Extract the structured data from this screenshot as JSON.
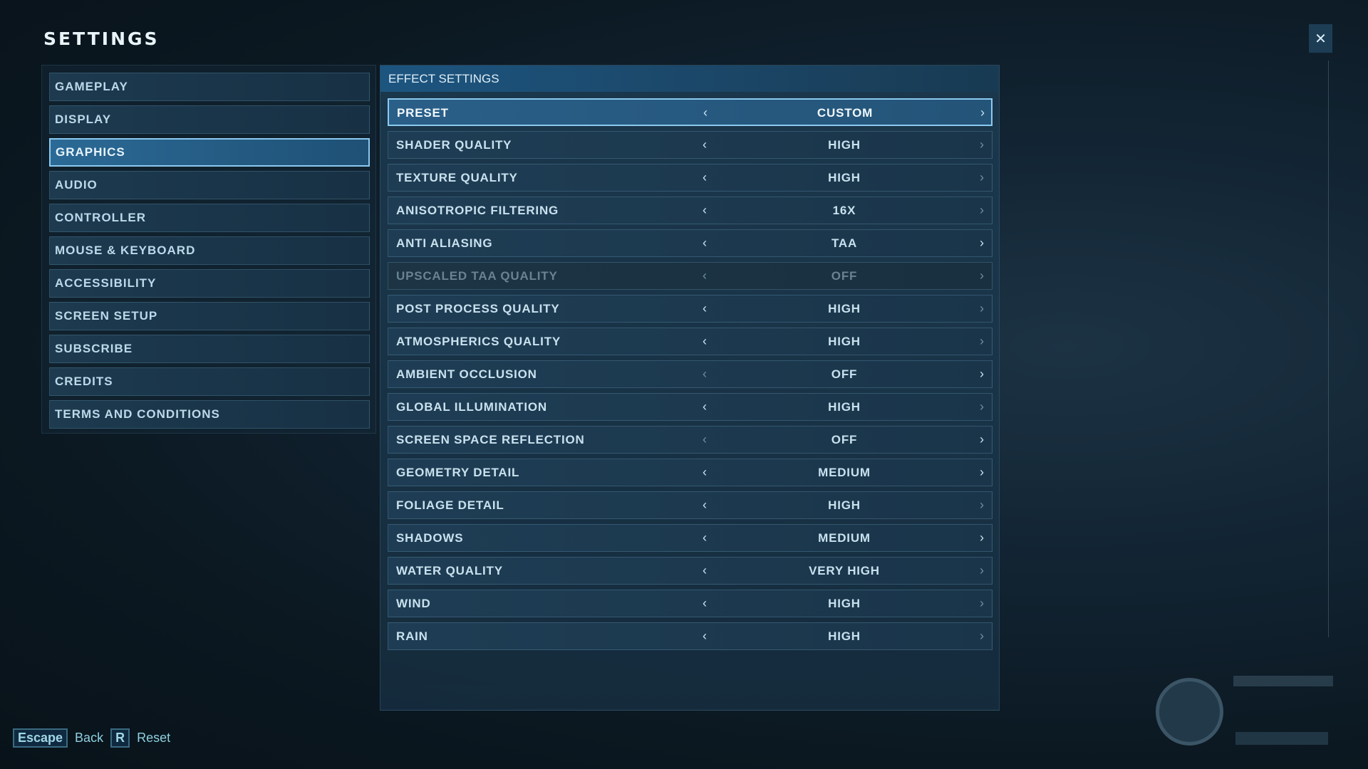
{
  "title": "SETTINGS",
  "sidebar": {
    "items": [
      {
        "label": "GAMEPLAY",
        "active": false
      },
      {
        "label": "DISPLAY",
        "active": false
      },
      {
        "label": "GRAPHICS",
        "active": true
      },
      {
        "label": "AUDIO",
        "active": false
      },
      {
        "label": "CONTROLLER",
        "active": false
      },
      {
        "label": "MOUSE & KEYBOARD",
        "active": false
      },
      {
        "label": "ACCESSIBILITY",
        "active": false
      },
      {
        "label": "SCREEN SETUP",
        "active": false
      },
      {
        "label": "SUBSCRIBE",
        "active": false
      },
      {
        "label": "CREDITS",
        "active": false
      },
      {
        "label": "TERMS AND CONDITIONS",
        "active": false
      }
    ]
  },
  "panel": {
    "header": "EFFECT SETTINGS",
    "rows": [
      {
        "label": "PRESET",
        "value": "CUSTOM",
        "active": true,
        "disabled": false,
        "left_on": true,
        "right_on": true
      },
      {
        "label": "SHADER QUALITY",
        "value": "HIGH",
        "active": false,
        "disabled": false,
        "left_on": true,
        "right_on": false
      },
      {
        "label": "TEXTURE QUALITY",
        "value": "HIGH",
        "active": false,
        "disabled": false,
        "left_on": true,
        "right_on": false
      },
      {
        "label": "ANISOTROPIC FILTERING",
        "value": "16X",
        "active": false,
        "disabled": false,
        "left_on": true,
        "right_on": false
      },
      {
        "label": "ANTI ALIASING",
        "value": "TAA",
        "active": false,
        "disabled": false,
        "left_on": true,
        "right_on": true
      },
      {
        "label": "UPSCALED TAA QUALITY",
        "value": "OFF",
        "active": false,
        "disabled": true,
        "left_on": false,
        "right_on": false
      },
      {
        "label": "POST PROCESS QUALITY",
        "value": "HIGH",
        "active": false,
        "disabled": false,
        "left_on": true,
        "right_on": false
      },
      {
        "label": "ATMOSPHERICS QUALITY",
        "value": "HIGH",
        "active": false,
        "disabled": false,
        "left_on": true,
        "right_on": false
      },
      {
        "label": "AMBIENT OCCLUSION",
        "value": "OFF",
        "active": false,
        "disabled": false,
        "left_on": false,
        "right_on": true
      },
      {
        "label": "GLOBAL ILLUMINATION",
        "value": "HIGH",
        "active": false,
        "disabled": false,
        "left_on": true,
        "right_on": false
      },
      {
        "label": "SCREEN SPACE REFLECTION",
        "value": "OFF",
        "active": false,
        "disabled": false,
        "left_on": false,
        "right_on": true
      },
      {
        "label": "GEOMETRY DETAIL",
        "value": "MEDIUM",
        "active": false,
        "disabled": false,
        "left_on": true,
        "right_on": true
      },
      {
        "label": "FOLIAGE DETAIL",
        "value": "HIGH",
        "active": false,
        "disabled": false,
        "left_on": true,
        "right_on": false
      },
      {
        "label": "SHADOWS",
        "value": "MEDIUM",
        "active": false,
        "disabled": false,
        "left_on": true,
        "right_on": true
      },
      {
        "label": "WATER QUALITY",
        "value": "VERY HIGH",
        "active": false,
        "disabled": false,
        "left_on": true,
        "right_on": false
      },
      {
        "label": "WIND",
        "value": "HIGH",
        "active": false,
        "disabled": false,
        "left_on": true,
        "right_on": false
      },
      {
        "label": "RAIN",
        "value": "HIGH",
        "active": false,
        "disabled": false,
        "left_on": true,
        "right_on": false
      }
    ]
  },
  "footer": {
    "back_key": "Escape",
    "back_label": "Back",
    "reset_key": "R",
    "reset_label": "Reset"
  },
  "icons": {
    "fullscreen": "collapse-arrows-icon",
    "arrow_left": "‹",
    "arrow_right": "›",
    "logo": "jurassic-world-logo"
  },
  "colors": {
    "accent": "#8cc9ef",
    "footer_text": "#8fd0e0"
  }
}
